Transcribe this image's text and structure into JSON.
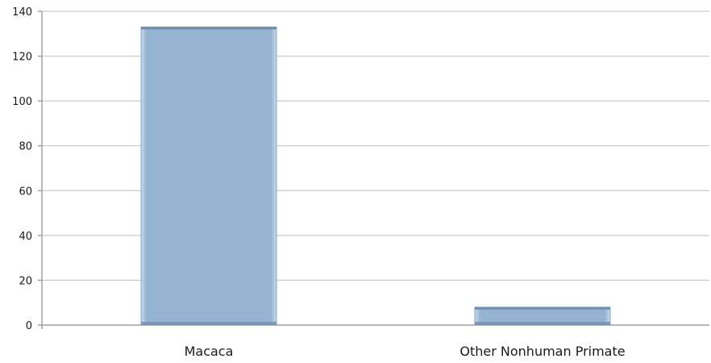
{
  "chart_data": {
    "type": "bar",
    "categories": [
      "Macaca",
      "Other Nonhuman Primate"
    ],
    "values": [
      133,
      8
    ],
    "ylim": [
      0,
      140
    ],
    "yticks": [
      0,
      20,
      40,
      60,
      80,
      100,
      120,
      140
    ],
    "title": "",
    "xlabel": "",
    "ylabel": "",
    "grid": true,
    "legend": "none",
    "colors": {
      "bar_fill": "#94b3d1",
      "bar_edge_light": "#d3e3f1",
      "bar_edge_dark": "#6f8fb1",
      "gridline": "#bfbfbf"
    }
  }
}
